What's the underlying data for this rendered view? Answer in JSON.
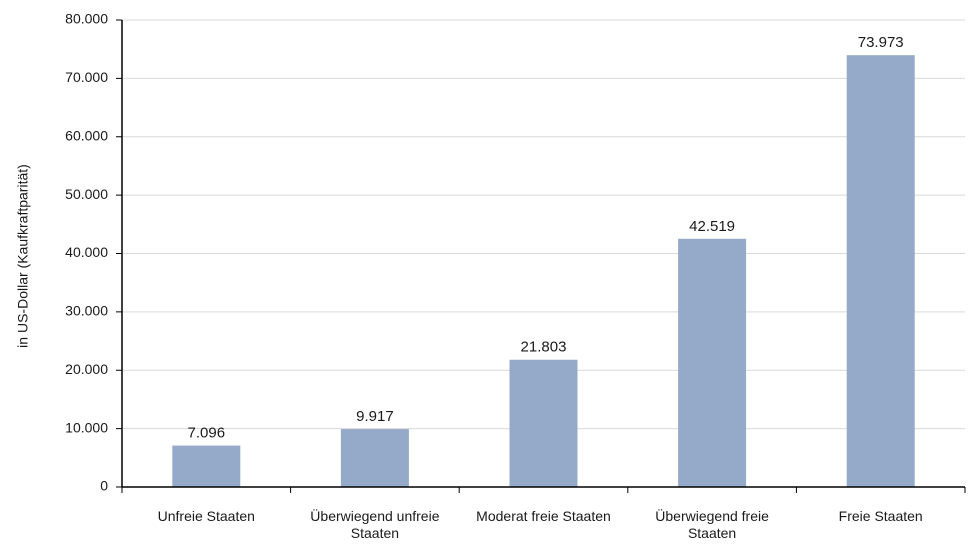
{
  "chart_data": {
    "type": "bar",
    "title": "",
    "xlabel": "",
    "ylabel": "in US-Dollar (Kaufkraftparität)",
    "ylim": [
      0,
      80000
    ],
    "yticks": [
      0,
      10000,
      20000,
      30000,
      40000,
      50000,
      60000,
      70000,
      80000
    ],
    "ytick_labels": [
      "0",
      "10.000",
      "20.000",
      "30.000",
      "40.000",
      "50.000",
      "60.000",
      "70.000",
      "80.000"
    ],
    "categories": [
      "Unfreie Staaten",
      "Überwiegend unfreie Staaten",
      "Moderat freie Staaten",
      "Überwiegend freie Staaten",
      "Freie Staaten"
    ],
    "values": [
      7096,
      9917,
      21803,
      42519,
      73973
    ],
    "value_labels": [
      "7.096",
      "9.917",
      "21.803",
      "42.519",
      "73.973"
    ],
    "grid": true,
    "bar_color": "#95a9c9",
    "grid_color": "#d9d9d9",
    "axis_color": "#000000"
  }
}
